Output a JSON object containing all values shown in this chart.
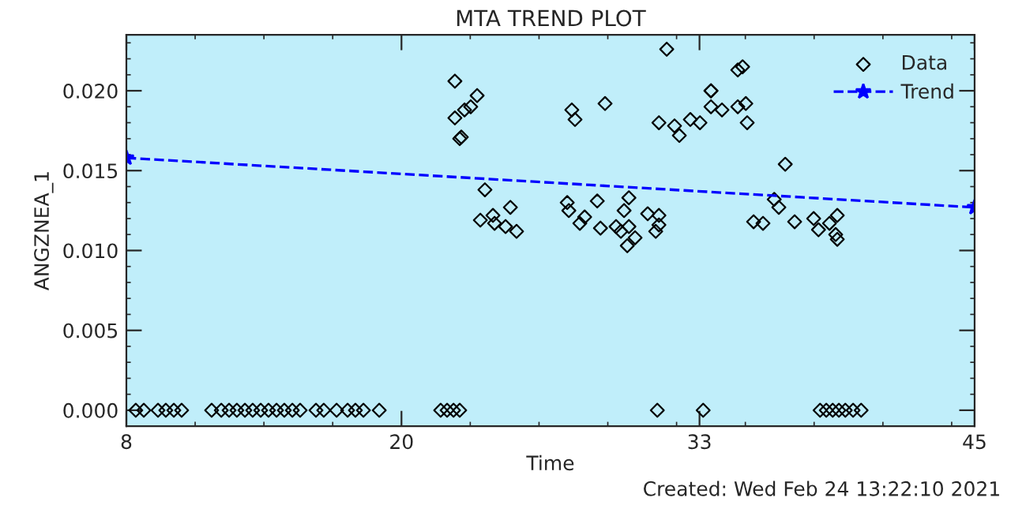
{
  "chart_data": {
    "type": "scatter",
    "title": "MTA TREND PLOT",
    "xlabel": "Time",
    "ylabel": "ANGZNEA_1",
    "annotations": [
      "Created: Wed Feb 24 13:22:10 2021"
    ],
    "xlim": [
      8,
      45
    ],
    "xticks": [
      8,
      20,
      33,
      45
    ],
    "ylim": [
      -0.001,
      0.0235
    ],
    "yticks": [
      {
        "value": 0,
        "label": "0.000"
      },
      {
        "value": 0.005,
        "label": "0.005"
      },
      {
        "value": 0.01,
        "label": "0.010"
      },
      {
        "value": 0.015,
        "label": "0.015"
      },
      {
        "value": 0.02,
        "label": "0.020"
      }
    ],
    "grid": false,
    "legend": "top right",
    "series": [
      {
        "name": "Data",
        "marker": "diamond",
        "color": "#000000",
        "x": [
          8.41,
          8.76,
          9.38,
          9.72,
          10.07,
          10.41,
          11.72,
          12.14,
          12.48,
          12.82,
          13.17,
          13.51,
          13.86,
          14.2,
          14.55,
          14.89,
          15.24,
          15.58,
          16.27,
          16.61,
          17.17,
          17.65,
          17.99,
          18.34,
          19.03,
          21.71,
          21.99,
          22.27,
          22.54,
          31.16,
          33.16,
          38.26,
          38.53,
          38.81,
          39.08,
          39.36,
          39.7,
          40.05,
          22.33,
          22.33,
          22.75,
          23.02,
          23.3,
          22.54,
          22.61,
          23.64,
          23.44,
          23.99,
          24.06,
          24.75,
          25.02,
          24.54,
          27.43,
          27.57,
          28.88,
          31.57,
          31.23,
          31.91,
          32.12,
          32.6,
          33.02,
          33.5,
          33.5,
          33.98,
          34.67,
          27.23,
          27.3,
          27.78,
          27.99,
          28.54,
          28.68,
          29.92,
          29.71,
          29.57,
          29.85,
          30.19,
          29.36,
          30.74,
          31.23,
          31.09,
          31.23,
          29.92,
          34.88,
          33.5,
          34.67,
          35.08,
          35.02,
          36.74,
          36.26,
          36.46,
          35.36,
          35.77,
          37.15,
          37.98,
          38.19,
          39.01,
          38.94,
          39.01,
          38.67
        ],
        "values": [
          0,
          0,
          0,
          0,
          0,
          0,
          0,
          0,
          0,
          0,
          0,
          0,
          0,
          0,
          0,
          0,
          0,
          0,
          0,
          0,
          0,
          0,
          0,
          0,
          0,
          0,
          0,
          0,
          0,
          0,
          0,
          0,
          0,
          0,
          0,
          0,
          0,
          0,
          0.0206,
          0.0183,
          0.0188,
          0.019,
          0.0197,
          0.017,
          0.0171,
          0.0138,
          0.0119,
          0.0122,
          0.0117,
          0.0127,
          0.0112,
          0.0115,
          0.0188,
          0.0182,
          0.0192,
          0.0226,
          0.018,
          0.0178,
          0.0172,
          0.0182,
          0.018,
          0.02,
          0.019,
          0.0188,
          0.0213,
          0.013,
          0.0125,
          0.0117,
          0.0121,
          0.0131,
          0.0114,
          0.0133,
          0.0125,
          0.0112,
          0.0103,
          0.0108,
          0.0115,
          0.0123,
          0.0122,
          0.0112,
          0.0116,
          0.0115,
          0.0215,
          0.02,
          0.019,
          0.018,
          0.0192,
          0.0154,
          0.0132,
          0.0127,
          0.0118,
          0.0117,
          0.0118,
          0.012,
          0.0113,
          0.0122,
          0.011,
          0.0107,
          0.0117
        ]
      },
      {
        "name": "Trend",
        "type": "line",
        "marker": "star",
        "line_style": "dashed",
        "color": "#0000ff",
        "x": [
          8,
          45
        ],
        "values": [
          0.0158,
          0.0127
        ]
      }
    ]
  }
}
